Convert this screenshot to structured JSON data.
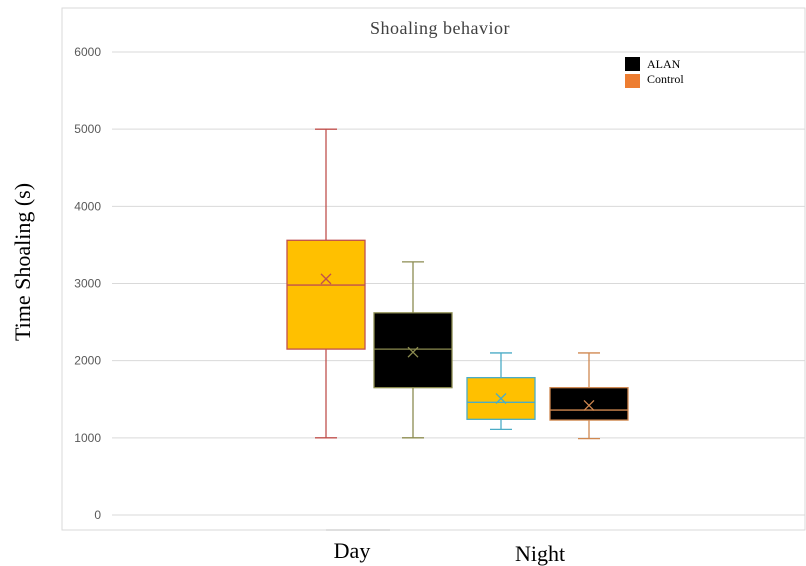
{
  "chart_data": {
    "type": "box",
    "title": "Shoaling behavior",
    "ylabel": "Time Shoaling (s)",
    "xlabel_groups": [
      "Day",
      "Night"
    ],
    "ylim": [
      0,
      6000
    ],
    "yticks": [
      0,
      1000,
      2000,
      3000,
      4000,
      5000,
      6000
    ],
    "grid": true,
    "legend_placement": "top-right",
    "legend": [
      {
        "name": "ALAN",
        "color": "#000000"
      },
      {
        "name": "Control",
        "color": "#ED7D31"
      }
    ],
    "boxes": [
      {
        "group": "Day",
        "fill": "#FFC000",
        "line": "#C0504D",
        "min": 1000,
        "q1": 2150,
        "median": 2980,
        "q3": 3560,
        "max": 5000,
        "mean": 3060
      },
      {
        "group": "Day",
        "fill": "#000000",
        "line": "#8C8C50",
        "min": 1000,
        "q1": 1650,
        "median": 2150,
        "q3": 2620,
        "max": 3280,
        "mean": 2110
      },
      {
        "group": "Night",
        "fill": "#FFC000",
        "line": "#4BACC6",
        "min": 1110,
        "q1": 1240,
        "median": 1460,
        "q3": 1780,
        "max": 2100,
        "mean": 1510
      },
      {
        "group": "Night",
        "fill": "#000000",
        "line": "#D08850",
        "min": 990,
        "q1": 1230,
        "median": 1360,
        "q3": 1650,
        "max": 2100,
        "mean": 1420
      }
    ]
  }
}
